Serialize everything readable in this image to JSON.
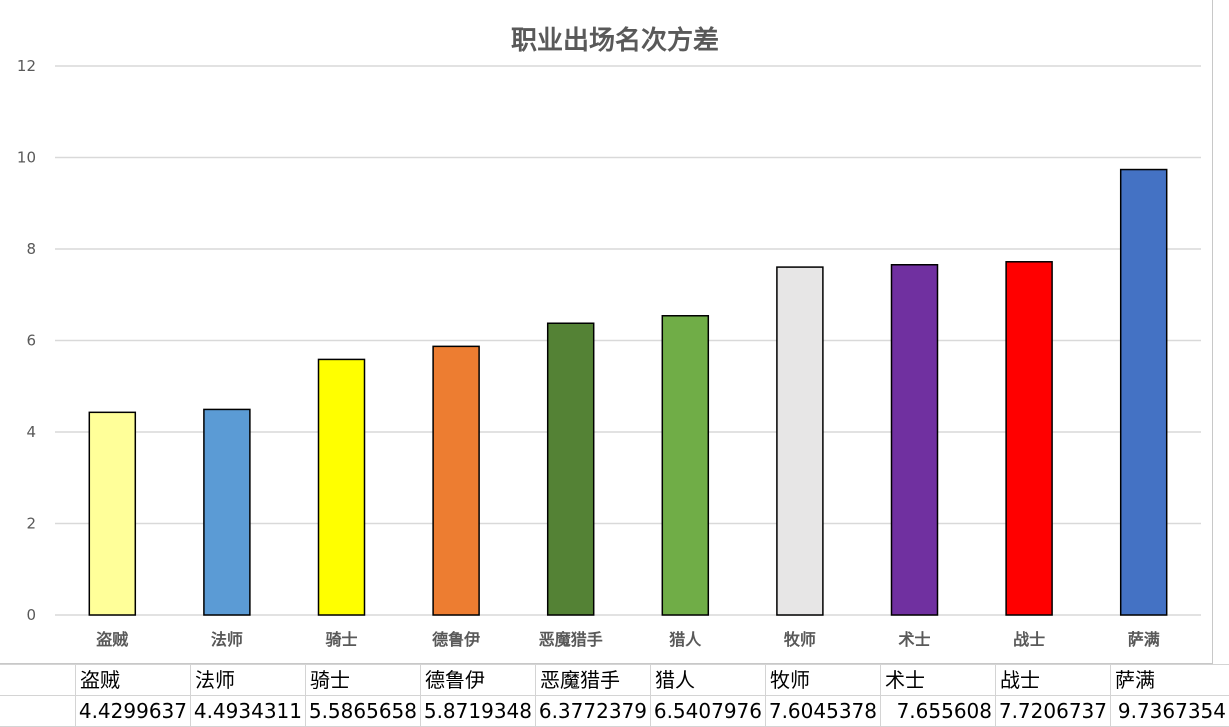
{
  "chart_data": {
    "type": "bar",
    "title": "职业出场名次方差",
    "categories": [
      "盗贼",
      "法师",
      "骑士",
      "德鲁伊",
      "恶魔猎手",
      "猎人",
      "牧师",
      "术士",
      "战士",
      "萨满"
    ],
    "values": [
      4.4299637,
      4.4934311,
      5.5865658,
      5.8719348,
      6.3772379,
      6.5407976,
      7.6045378,
      7.655608,
      7.7206737,
      9.7367354
    ],
    "bar_colors": [
      "#FFFF99",
      "#5B9BD5",
      "#FFFF00",
      "#ED7D31",
      "#548235",
      "#70AD47",
      "#E7E6E6",
      "#7030A0",
      "#FF0000",
      "#4472C4"
    ],
    "ylim": [
      0,
      12
    ],
    "yticks": [
      0,
      2,
      4,
      6,
      8,
      10,
      12
    ],
    "grid": true,
    "legend": "none"
  },
  "table": {
    "labels": [
      "盗贼",
      "法师",
      "骑士",
      "德鲁伊",
      "恶魔猎手",
      "猎人",
      "牧师",
      "术士",
      "战士",
      "萨满"
    ],
    "values": [
      "4.4299637",
      "4.4934311",
      "5.5865658",
      "5.8719348",
      "6.3772379",
      "6.5407976",
      "7.6045378",
      "7.655608",
      "7.7206737",
      "9.7367354"
    ]
  }
}
